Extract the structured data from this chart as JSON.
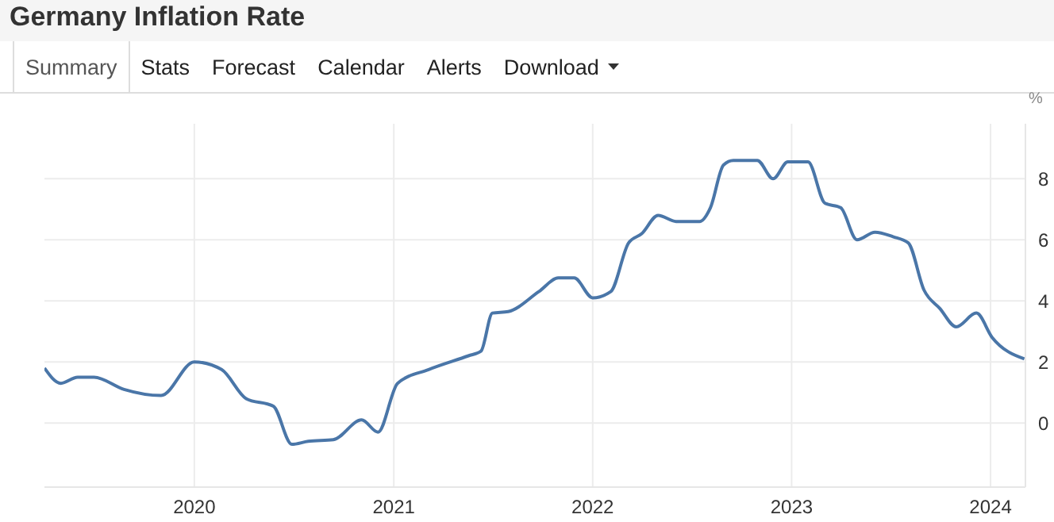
{
  "chart_data": {
    "type": "line",
    "title": "Germany Inflation Rate",
    "ylabel": "%",
    "annotations": [
      "Summary",
      "Stats",
      "Forecast",
      "Calendar",
      "Alerts",
      "Download"
    ],
    "x": [
      "2019-04-01",
      "2019-05-01",
      "2019-06-01",
      "2019-07-01",
      "2019-08-25",
      "2019-11-01",
      "2020-01-01",
      "2020-02-20",
      "2020-04-05",
      "2020-05-25",
      "2020-06-28",
      "2020-07-28",
      "2020-09-12",
      "2020-11-03",
      "2020-12-03",
      "2021-01-08",
      "2021-03-06",
      "2021-05-18",
      "2021-06-10",
      "2021-07-01",
      "2021-07-30",
      "2021-09-24",
      "2021-10-30",
      "2021-11-28",
      "2022-01-01",
      "2022-02-03",
      "2022-03-08",
      "2022-04-01",
      "2022-05-01",
      "2022-06-03",
      "2022-07-16",
      "2022-08-05",
      "2022-08-29",
      "2022-09-16",
      "2022-10-30",
      "2022-11-28",
      "2022-12-25",
      "2023-01-31",
      "2023-03-03",
      "2023-04-01",
      "2023-05-01",
      "2023-06-03",
      "2023-07-06",
      "2023-08-03",
      "2023-09-01",
      "2023-09-30",
      "2023-10-30",
      "2023-12-06",
      "2024-01-04",
      "2024-03-03"
    ],
    "series": [
      {
        "color": "#4a76a8",
        "values": [
          1.8,
          1.3,
          1.5,
          1.5,
          1.1,
          0.9,
          2.0,
          1.75,
          0.8,
          0.55,
          -0.7,
          -0.6,
          -0.55,
          0.1,
          -0.3,
          1.3,
          1.75,
          2.2,
          2.35,
          3.6,
          3.65,
          4.3,
          4.75,
          4.75,
          4.1,
          4.3,
          5.9,
          6.2,
          6.8,
          6.6,
          6.6,
          7.05,
          8.45,
          8.6,
          8.6,
          8.0,
          8.55,
          8.55,
          7.2,
          7.05,
          6.0,
          6.25,
          6.1,
          5.9,
          4.35,
          3.75,
          3.15,
          3.6,
          2.8,
          2.1
        ]
      }
    ],
    "xlim": [
      "2019-04-01",
      "2024-03-05"
    ],
    "xticks": [
      "2020",
      "2021",
      "2022",
      "2023",
      "2024"
    ],
    "ylim": [
      -2.1,
      9.8
    ],
    "yticks": [
      0,
      2,
      4,
      6,
      8
    ],
    "grid": true,
    "marker": "none",
    "line_style": "solid"
  }
}
